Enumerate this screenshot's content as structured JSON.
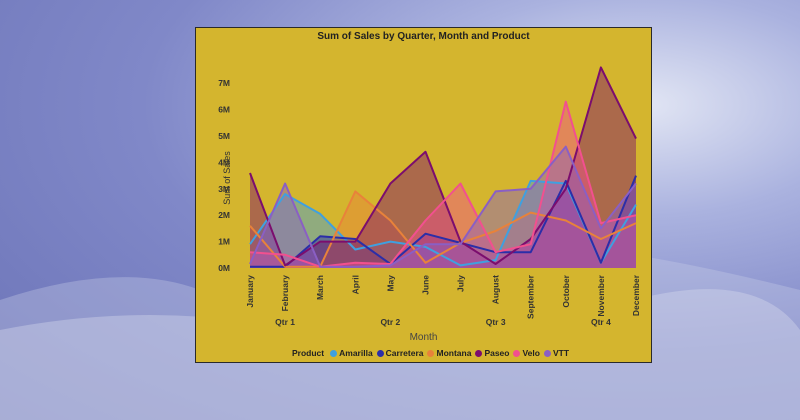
{
  "chart_data": {
    "type": "area",
    "title": "Sum of Sales by Quarter, Month and Product",
    "xlabel": "Month",
    "ylabel": "Sum of Sales",
    "ylim": [
      0,
      7500000
    ],
    "yticks": [
      "0M",
      "1M",
      "2M",
      "3M",
      "4M",
      "5M",
      "6M",
      "7M"
    ],
    "categories": [
      "January",
      "February",
      "March",
      "April",
      "May",
      "June",
      "July",
      "August",
      "September",
      "October",
      "November",
      "December"
    ],
    "quarters": [
      "Qtr 1",
      "Qtr 2",
      "Qtr 3",
      "Qtr 4"
    ],
    "legend_title": "Product",
    "series": [
      {
        "name": "Amarilla",
        "color": "#3fa0e0",
        "values": [
          900000,
          2800000,
          2050000,
          700000,
          1000000,
          800000,
          100000,
          300000,
          3300000,
          3200000,
          200000,
          2400000
        ]
      },
      {
        "name": "Carretera",
        "color": "#2b2ea8",
        "values": [
          50000,
          50000,
          1200000,
          1100000,
          150000,
          1300000,
          950000,
          600000,
          600000,
          3300000,
          200000,
          3500000
        ]
      },
      {
        "name": "Montana",
        "color": "#e8823a",
        "values": [
          1600000,
          50000,
          50000,
          2900000,
          1800000,
          200000,
          950000,
          1400000,
          2100000,
          1800000,
          1100000,
          1700000
        ]
      },
      {
        "name": "Paseo",
        "color": "#7b0d6e",
        "values": [
          3600000,
          100000,
          1000000,
          1000000,
          3200000,
          4400000,
          1000000,
          150000,
          1100000,
          3000000,
          7600000,
          4900000
        ]
      },
      {
        "name": "Velo",
        "color": "#f2508f",
        "values": [
          600000,
          500000,
          50000,
          200000,
          150000,
          1800000,
          3200000,
          600000,
          900000,
          6300000,
          1700000,
          2000000
        ]
      },
      {
        "name": "VTT",
        "color": "#8a5fc4",
        "values": [
          150000,
          3200000,
          50000,
          50000,
          100000,
          900000,
          900000,
          2900000,
          3000000,
          4600000,
          1500000,
          3200000
        ]
      }
    ]
  }
}
